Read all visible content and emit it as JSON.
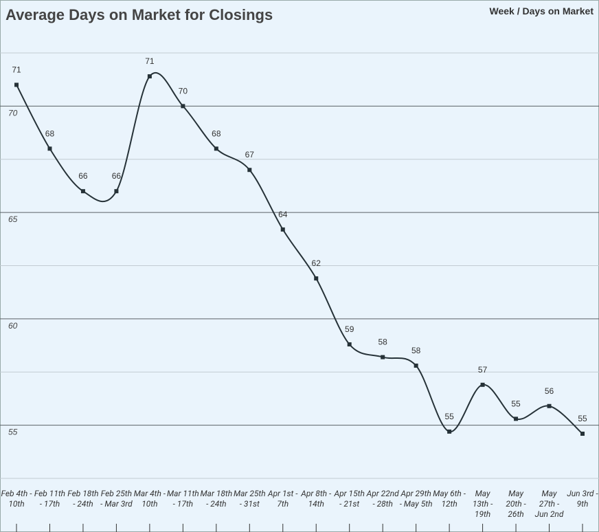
{
  "chart_data": {
    "type": "line",
    "title": "Average Days on Market for Closings",
    "legend_text": "Week / Days on Market",
    "categories": [
      "Feb 4th - 10th",
      "Feb 11th - 17th",
      "Feb 18th - 24th",
      "Feb 25th - Mar 3rd",
      "Mar 4th - 10th",
      "Mar 11th - 17th",
      "Mar 18th - 24th",
      "Mar 25th - 31st",
      "Apr 1st - 7th",
      "Apr 8th - 14th",
      "Apr 15th - 21st",
      "Apr 22nd - 28th",
      "Apr 29th - May 5th",
      "May 6th - 12th",
      "May 13th - 19th",
      "May 20th - 26th",
      "May 27th - Jun 2nd",
      "Jun 3rd - 9th"
    ],
    "series": [
      {
        "name": "Days on Market",
        "color": "#263238",
        "values": [
          71.0,
          68.0,
          66.0,
          66.0,
          71.4,
          70.0,
          68.0,
          67.0,
          64.2,
          61.9,
          58.8,
          58.2,
          57.8,
          54.7,
          56.9,
          55.3,
          55.9,
          54.6
        ],
        "value_labels": [
          "71",
          "68",
          "66",
          "66",
          "71",
          "70",
          "68",
          "67",
          "64",
          "62",
          "59",
          "58",
          "58",
          "55",
          "57",
          "55",
          "56",
          "55"
        ]
      }
    ],
    "ylim": [
      52.5,
      72.5
    ],
    "yticks": [
      55,
      60,
      65,
      70
    ],
    "y_minor_ticks": [
      52.5,
      57.5,
      62.5,
      67.5,
      72.5
    ],
    "grid": true
  }
}
